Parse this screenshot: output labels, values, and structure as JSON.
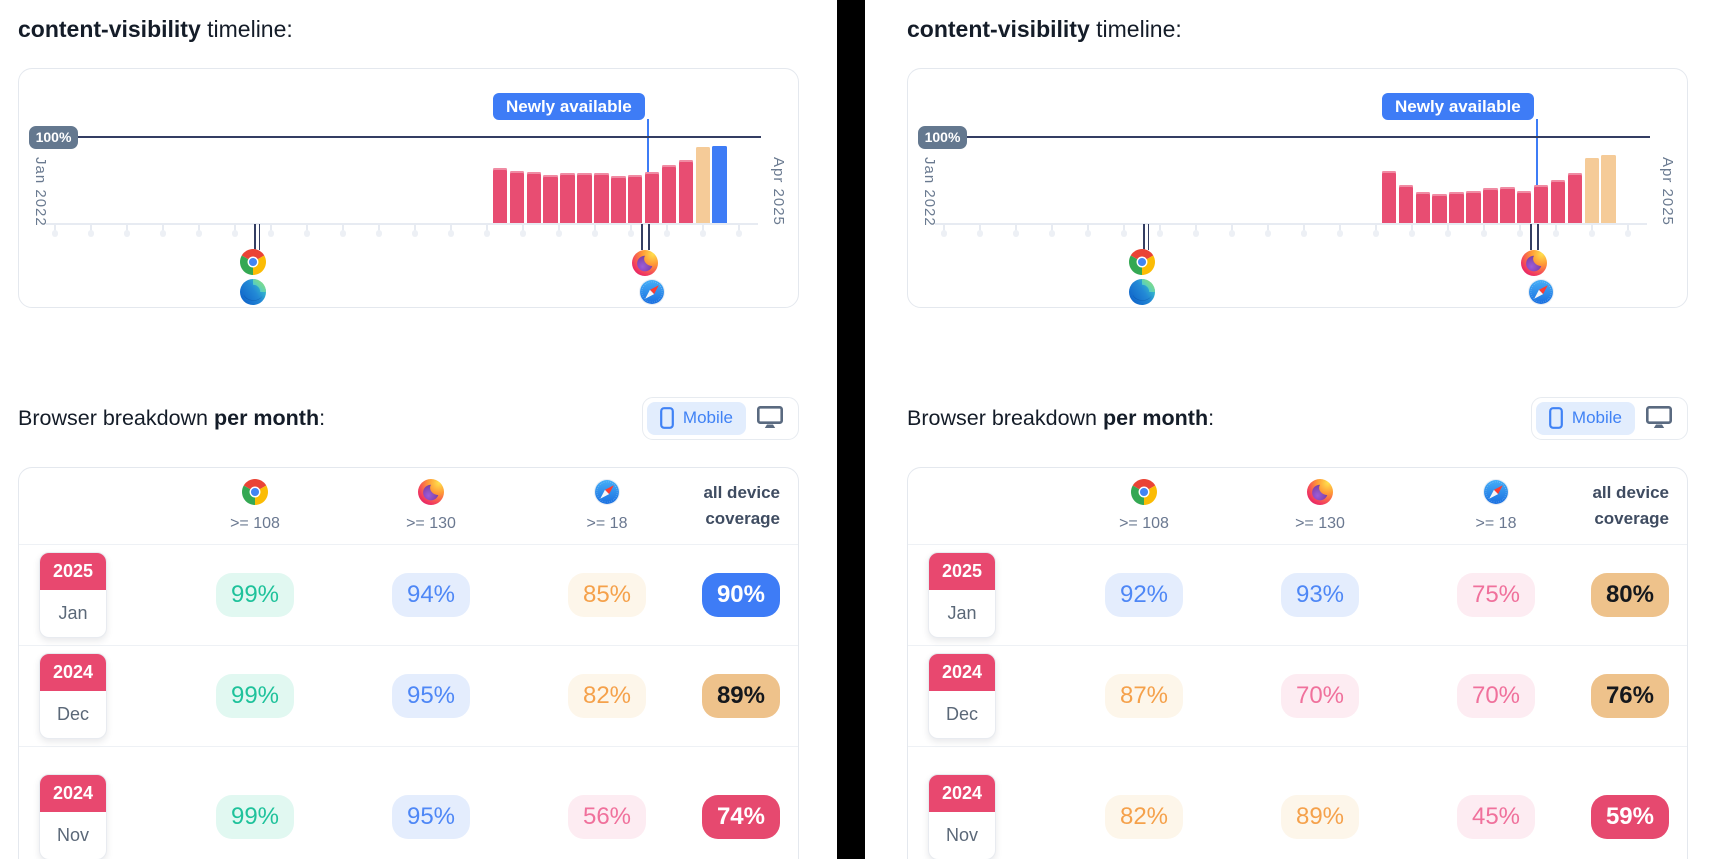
{
  "colors": {
    "accent_blue": "#3e7cf6",
    "accent_pink": "#e8486f",
    "bar_pink": "#e84d72",
    "bar_tan": "#f5cb98",
    "bar_blue": "#3e7cf6",
    "reference_line_navy": "#343e63",
    "divider_black": "#000000",
    "pill_teal_text": "#1fc29b",
    "pill_blue_text": "#4e87f6",
    "pill_orange_text": "#f5a14b",
    "pill_pink_text": "#f0719c"
  },
  "chart_data": [
    {
      "type": "bar",
      "title": "content-visibility timeline (left panel)",
      "x": [
        "Dec 2023",
        "Jan 2024",
        "Feb 2024",
        "Mar 2024",
        "Apr 2024",
        "May 2024",
        "Jun 2024",
        "Jul 2024",
        "Aug 2024",
        "Sep 2024",
        "Oct 2024",
        "Nov 2024",
        "Dec 2024",
        "Jan 2025"
      ],
      "values": [
        64,
        61,
        60,
        56,
        59,
        58,
        59,
        55,
        56,
        60,
        68,
        74,
        89,
        90
      ],
      "bar_colors": [
        "pink",
        "pink",
        "pink",
        "pink",
        "pink",
        "pink",
        "pink",
        "pink",
        "pink",
        "pink",
        "pink",
        "pink",
        "tan",
        "blue"
      ],
      "ylim": [
        0,
        100
      ],
      "y_reference_line_label": "100%",
      "x_axis_start_label": "Jan 2022",
      "x_axis_end_label": "Apr 2025",
      "annotation": "Newly available",
      "release_markers": [
        {
          "browsers": [
            "chrome",
            "edge"
          ]
        },
        {
          "browsers": [
            "firefox",
            "safari"
          ]
        }
      ],
      "grid": false,
      "legend": false
    },
    {
      "type": "bar",
      "title": "content-visibility timeline (right panel)",
      "x": [
        "Dec 2023",
        "Jan 2024",
        "Feb 2024",
        "Mar 2024",
        "Apr 2024",
        "May 2024",
        "Jun 2024",
        "Jul 2024",
        "Aug 2024",
        "Sep 2024",
        "Oct 2024",
        "Nov 2024",
        "Dec 2024",
        "Jan 2025"
      ],
      "values": [
        61,
        45,
        36,
        34,
        36,
        38,
        41,
        42,
        38,
        45,
        50,
        59,
        76,
        80
      ],
      "bar_colors": [
        "pink",
        "pink",
        "pink",
        "pink",
        "pink",
        "pink",
        "pink",
        "pink",
        "pink",
        "pink",
        "pink",
        "pink",
        "tan",
        "tan"
      ],
      "ylim": [
        0,
        100
      ],
      "y_reference_line_label": "100%",
      "x_axis_start_label": "Jan 2022",
      "x_axis_end_label": "Apr 2025",
      "annotation": "Newly available",
      "release_markers": [
        {
          "browsers": [
            "chrome",
            "edge"
          ]
        },
        {
          "browsers": [
            "firefox",
            "safari"
          ]
        }
      ],
      "grid": false,
      "legend": false
    }
  ],
  "panels": [
    {
      "title_feature": "content-visibility",
      "title_rest": " timeline:",
      "timeline_badge": "Newly available",
      "timeline_y_label": "100%",
      "timeline_x_start": "Jan 2022",
      "timeline_x_end": "Apr 2025",
      "breakdown_heading_normal": "Browser breakdown ",
      "breakdown_heading_bold": "per month",
      "breakdown_heading_colon": ":",
      "toggle": {
        "mobile_label": "Mobile"
      },
      "table": {
        "columns": [
          {
            "icon": "chrome",
            "version": ">= 108"
          },
          {
            "icon": "firefox",
            "version": ">= 130"
          },
          {
            "icon": "safari",
            "version": ">= 18"
          }
        ],
        "all_device_line1": "all device",
        "all_device_line2": "coverage",
        "rows": [
          {
            "year": "2025",
            "month": "Jan",
            "cells": [
              {
                "value": "99%",
                "style": "teal"
              },
              {
                "value": "94%",
                "style": "blue"
              },
              {
                "value": "85%",
                "style": "orange"
              },
              {
                "value": "90%",
                "style": "solid-blue"
              }
            ]
          },
          {
            "year": "2024",
            "month": "Dec",
            "cells": [
              {
                "value": "99%",
                "style": "teal"
              },
              {
                "value": "95%",
                "style": "blue"
              },
              {
                "value": "82%",
                "style": "orange"
              },
              {
                "value": "89%",
                "style": "solid-tan"
              }
            ]
          },
          {
            "year": "2024",
            "month": "Nov",
            "cells": [
              {
                "value": "99%",
                "style": "teal"
              },
              {
                "value": "95%",
                "style": "blue"
              },
              {
                "value": "56%",
                "style": "pink"
              },
              {
                "value": "74%",
                "style": "solid-pink"
              }
            ]
          }
        ]
      }
    },
    {
      "title_feature": "content-visibility",
      "title_rest": " timeline:",
      "timeline_badge": "Newly available",
      "timeline_y_label": "100%",
      "timeline_x_start": "Jan 2022",
      "timeline_x_end": "Apr 2025",
      "breakdown_heading_normal": "Browser breakdown ",
      "breakdown_heading_bold": "per month",
      "breakdown_heading_colon": ":",
      "toggle": {
        "mobile_label": "Mobile"
      },
      "table": {
        "columns": [
          {
            "icon": "chrome",
            "version": ">= 108"
          },
          {
            "icon": "firefox",
            "version": ">= 130"
          },
          {
            "icon": "safari",
            "version": ">= 18"
          }
        ],
        "all_device_line1": "all device",
        "all_device_line2": "coverage",
        "rows": [
          {
            "year": "2025",
            "month": "Jan",
            "cells": [
              {
                "value": "92%",
                "style": "blue"
              },
              {
                "value": "93%",
                "style": "blue"
              },
              {
                "value": "75%",
                "style": "pink"
              },
              {
                "value": "80%",
                "style": "solid-tan"
              }
            ]
          },
          {
            "year": "2024",
            "month": "Dec",
            "cells": [
              {
                "value": "87%",
                "style": "orange"
              },
              {
                "value": "70%",
                "style": "pink"
              },
              {
                "value": "70%",
                "style": "pink"
              },
              {
                "value": "76%",
                "style": "solid-tan"
              }
            ]
          },
          {
            "year": "2024",
            "month": "Nov",
            "cells": [
              {
                "value": "82%",
                "style": "orange"
              },
              {
                "value": "89%",
                "style": "orange"
              },
              {
                "value": "45%",
                "style": "pink"
              },
              {
                "value": "59%",
                "style": "solid-pink"
              }
            ]
          }
        ]
      }
    }
  ]
}
